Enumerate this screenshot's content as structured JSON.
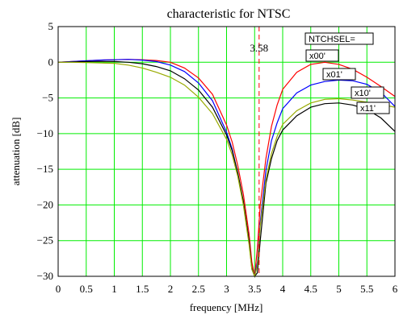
{
  "chart_data": {
    "type": "line",
    "title": "characteristic for NTSC",
    "xlabel": "frequency [MHz]",
    "ylabel": "attenuation [dB]",
    "xlim": [
      0,
      6
    ],
    "ylim": [
      -30,
      5
    ],
    "grid": true,
    "x_ticks": [
      "0",
      "0.5",
      "1",
      "1.5",
      "2",
      "2.5",
      "3",
      "3.5",
      "4",
      "4.5",
      "5",
      "5.5",
      "6"
    ],
    "y_ticks": [
      "5",
      "0",
      "-5",
      "-10",
      "-15",
      "-20",
      "-25",
      "-30"
    ],
    "marker": {
      "x": 3.58,
      "label": "3.58",
      "color": "#ff0000"
    },
    "legend_title": "NTCHSEL=",
    "legend_placement": "top-right",
    "colors": {
      "grid": "#00ee00",
      "frame": "#000000"
    },
    "x": [
      0,
      0.25,
      0.5,
      0.75,
      1,
      1.25,
      1.5,
      1.75,
      2,
      2.25,
      2.5,
      2.75,
      3,
      3.1,
      3.2,
      3.3,
      3.4,
      3.45,
      3.5,
      3.55,
      3.6,
      3.7,
      3.8,
      3.9,
      4,
      4.25,
      4.5,
      4.75,
      5,
      5.25,
      5.5,
      5.75,
      6
    ],
    "series": [
      {
        "name": "x00'",
        "color": "#ff0000",
        "values": [
          0,
          0.1,
          0.2,
          0.3,
          0.35,
          0.4,
          0.35,
          0.25,
          0,
          -0.8,
          -2.2,
          -4.5,
          -8.8,
          -11.2,
          -14.5,
          -18.5,
          -24,
          -28,
          -30,
          -26,
          -20,
          -13.5,
          -9,
          -6,
          -3.8,
          -1.4,
          -0.3,
          0,
          -0.3,
          -1,
          -2.1,
          -3.4,
          -4.8
        ]
      },
      {
        "name": "x01'",
        "color": "#0000ff",
        "values": [
          0,
          0.1,
          0.2,
          0.3,
          0.35,
          0.4,
          0.3,
          0.1,
          -0.4,
          -1.3,
          -2.9,
          -5.4,
          -9.8,
          -12.2,
          -15.6,
          -19.8,
          -25,
          -29,
          -30,
          -28,
          -22.5,
          -15.2,
          -11,
          -8.5,
          -6.5,
          -4.3,
          -3.2,
          -2.7,
          -2.5,
          -2.6,
          -3.1,
          -4.2,
          -6.2
        ]
      },
      {
        "name": "x10'",
        "color": "#000000",
        "values": [
          0,
          0.05,
          0.1,
          0.12,
          0.1,
          0,
          -0.2,
          -0.6,
          -1.2,
          -2.3,
          -3.9,
          -6.3,
          -10.2,
          -12.4,
          -15.5,
          -19.5,
          -25,
          -28.8,
          -30,
          -29.5,
          -25,
          -17,
          -13.5,
          -11,
          -9.5,
          -7.5,
          -6.3,
          -5.8,
          -5.7,
          -6,
          -6.6,
          -7.8,
          -9.7
        ]
      },
      {
        "name": "x11'",
        "color": "#99aa00",
        "values": [
          0,
          0,
          -0.05,
          -0.1,
          -0.15,
          -0.4,
          -0.8,
          -1.4,
          -2.1,
          -3.2,
          -4.9,
          -7.2,
          -10.8,
          -13,
          -16,
          -20,
          -25.5,
          -29,
          -30,
          -28.5,
          -23,
          -16.5,
          -12.8,
          -10.4,
          -8.7,
          -6.8,
          -5.7,
          -5.2,
          -5.1,
          -5.3,
          -5.6,
          -5.9,
          -6.3
        ]
      }
    ]
  }
}
